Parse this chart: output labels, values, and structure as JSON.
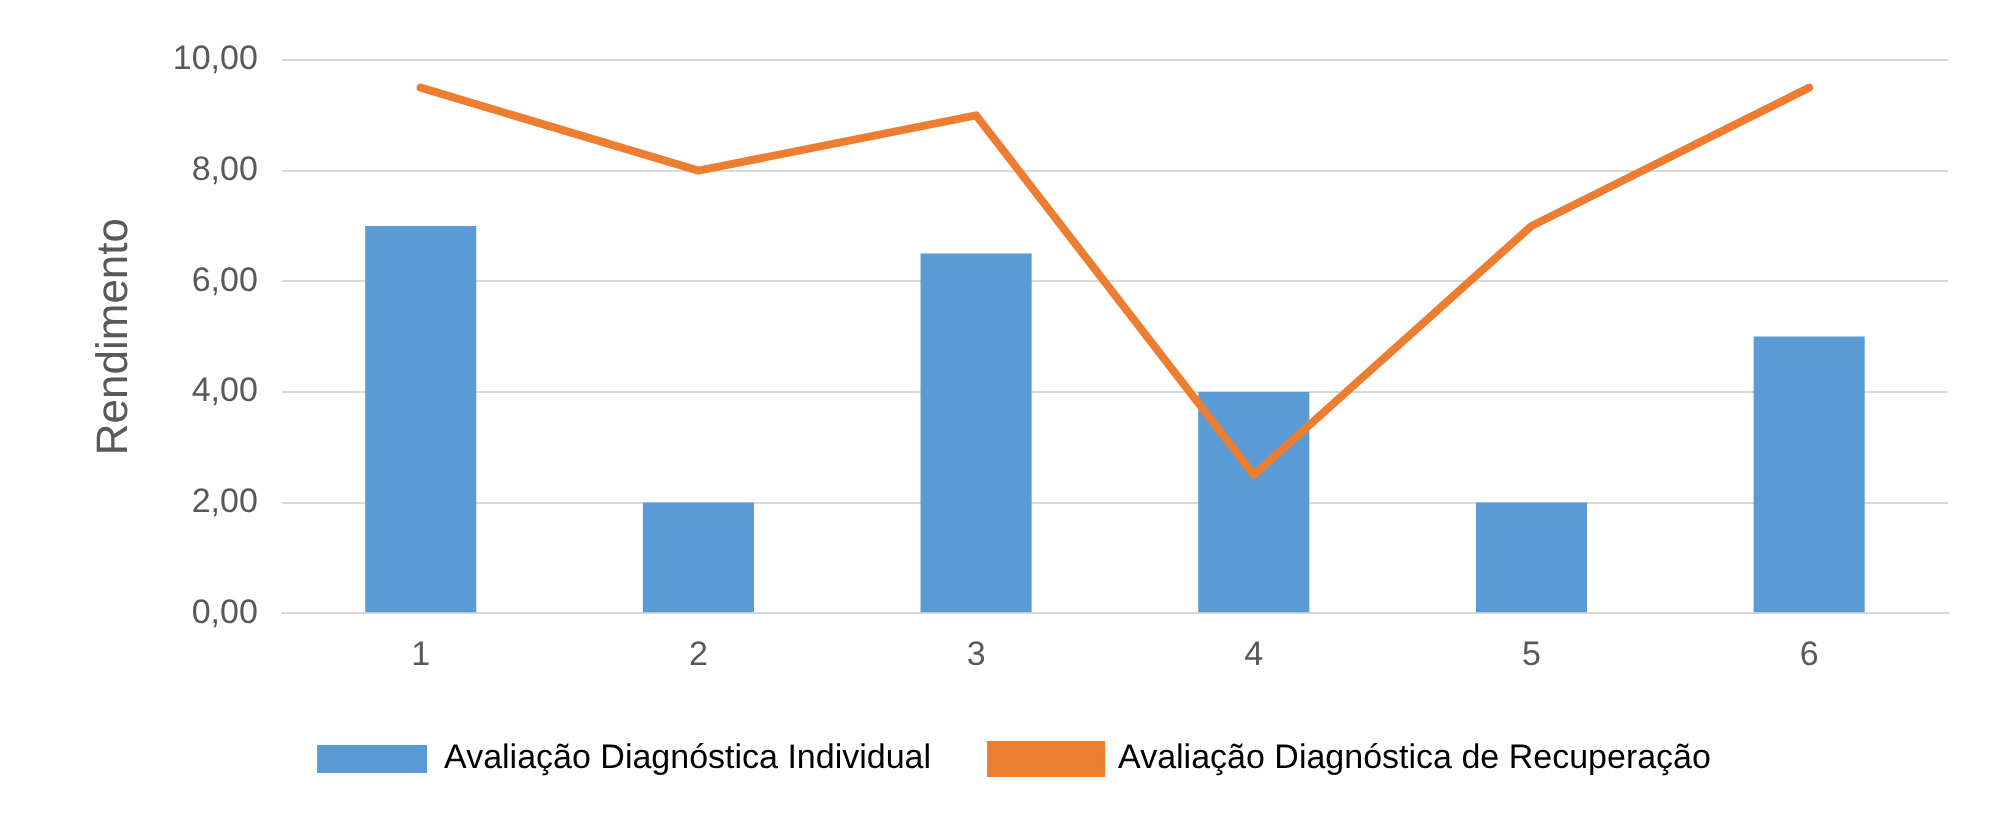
{
  "chart_data": {
    "type": "bar",
    "ylabel": "Rendimento",
    "categories": [
      "1",
      "2",
      "3",
      "4",
      "5",
      "6"
    ],
    "series": [
      {
        "name": "Avaliação Diagnóstica Individual",
        "color": "#5b9bd5",
        "values": [
          7,
          2,
          6.5,
          4,
          2,
          5
        ]
      },
      {
        "name": "Avaliação Diagnóstica de Recuperação",
        "type": "line",
        "color": "#ed7d31",
        "values": [
          9.5,
          8,
          9,
          2.5,
          7,
          9.5
        ]
      }
    ],
    "ylim": [
      0,
      10
    ],
    "yticks": [
      {
        "value": 0,
        "label": "0,00"
      },
      {
        "value": 2,
        "label": "2,00"
      },
      {
        "value": 4,
        "label": "4,00"
      },
      {
        "value": 6,
        "label": "6,00"
      },
      {
        "value": 8,
        "label": "8,00"
      },
      {
        "value": 10,
        "label": "10,00"
      }
    ],
    "grid": "y",
    "legend": "bottom",
    "marker": "none",
    "line_style": "solid"
  }
}
